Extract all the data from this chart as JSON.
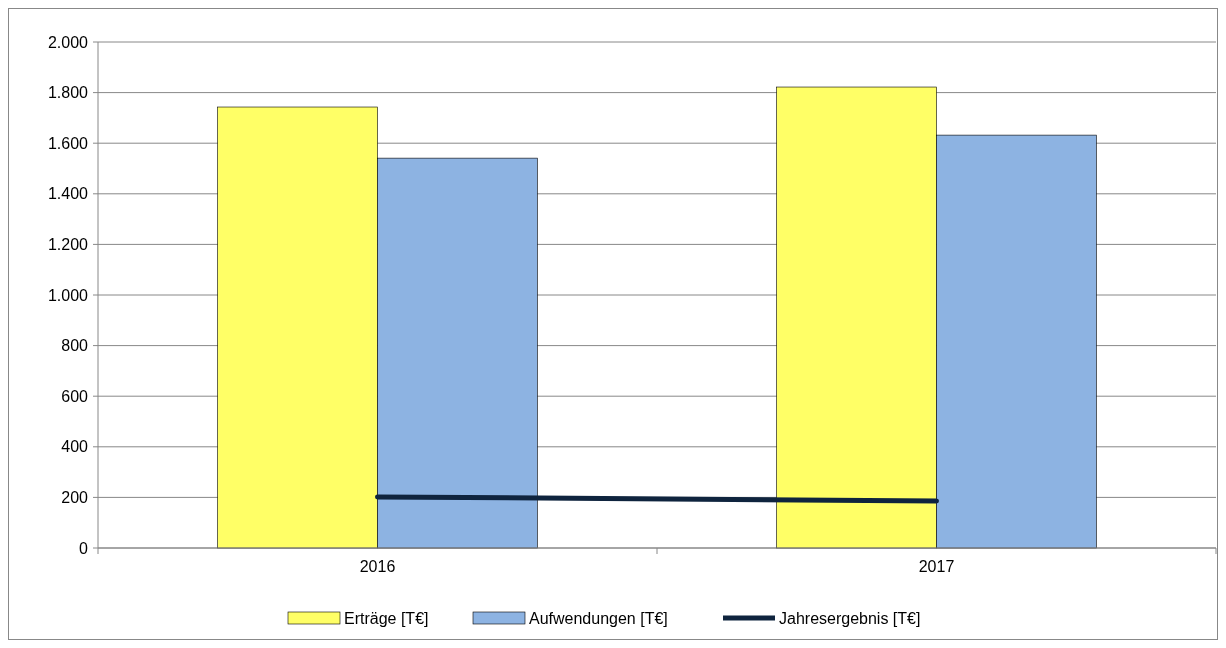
{
  "chart_data": {
    "type": "bar",
    "categories": [
      "2016",
      "2017"
    ],
    "series": [
      {
        "name": "Erträge [T€]",
        "color": "#ffff66",
        "values": [
          1743,
          1822
        ]
      },
      {
        "name": "Aufwendungen [T€]",
        "color": "#8db3e2",
        "values": [
          1541,
          1632
        ]
      },
      {
        "name": "Jahresergebnis [T€]",
        "color": "#0f243e",
        "type": "line",
        "values": [
          202,
          186
        ]
      }
    ],
    "ylim": [
      0,
      2000
    ],
    "yticks": [
      {
        "value": 0,
        "label": "0"
      },
      {
        "value": 200,
        "label": "200"
      },
      {
        "value": 400,
        "label": "400"
      },
      {
        "value": 600,
        "label": "600"
      },
      {
        "value": 800,
        "label": "800"
      },
      {
        "value": 1000,
        "label": "1.000"
      },
      {
        "value": 1200,
        "label": "1.200"
      },
      {
        "value": 1400,
        "label": "1.400"
      },
      {
        "value": 1600,
        "label": "1.600"
      },
      {
        "value": 1800,
        "label": "1.800"
      },
      {
        "value": 2000,
        "label": "2.000"
      }
    ],
    "grid": "y",
    "legend": "bottom"
  }
}
